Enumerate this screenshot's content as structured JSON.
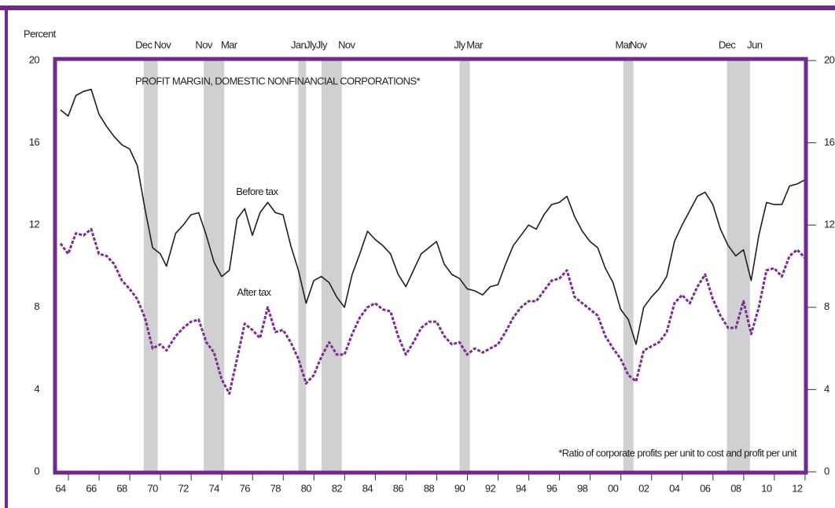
{
  "chart_data": {
    "type": "line",
    "y_label": "Percent",
    "title": "PROFIT MARGIN, DOMESTIC NONFINANCIAL CORPORATIONS*",
    "footnote": "*Ratio of corporate profits per unit to cost and profit per unit",
    "annotations": [
      {
        "text": "Before tax",
        "x": 1977.3,
        "y": 13.6
      },
      {
        "text": "After tax",
        "x": 1977.1,
        "y": 8.7
      }
    ],
    "xlim": [
      1964.04,
      2013.17
    ],
    "ylim": [
      0,
      20
    ],
    "yticks": [
      0,
      4,
      8,
      12,
      16,
      20
    ],
    "xticks": [
      {
        "value": 1964.5,
        "label": "64"
      },
      {
        "value": 1966.5,
        "label": "66"
      },
      {
        "value": 1968.5,
        "label": "68"
      },
      {
        "value": 1970.5,
        "label": "70"
      },
      {
        "value": 1972.5,
        "label": "72"
      },
      {
        "value": 1974.5,
        "label": "74"
      },
      {
        "value": 1976.5,
        "label": "76"
      },
      {
        "value": 1978.5,
        "label": "78"
      },
      {
        "value": 1980.5,
        "label": "80"
      },
      {
        "value": 1982.5,
        "label": "82"
      },
      {
        "value": 1984.5,
        "label": "84"
      },
      {
        "value": 1986.5,
        "label": "86"
      },
      {
        "value": 1988.5,
        "label": "88"
      },
      {
        "value": 1990.5,
        "label": "90"
      },
      {
        "value": 1992.5,
        "label": "92"
      },
      {
        "value": 1994.5,
        "label": "94"
      },
      {
        "value": 1996.5,
        "label": "96"
      },
      {
        "value": 1998.5,
        "label": "98"
      },
      {
        "value": 2000.5,
        "label": "00"
      },
      {
        "value": 2002.5,
        "label": "02"
      },
      {
        "value": 2004.5,
        "label": "04"
      },
      {
        "value": 2006.5,
        "label": "06"
      },
      {
        "value": 2008.5,
        "label": "08"
      },
      {
        "value": 2010.5,
        "label": "10"
      },
      {
        "value": 2012.5,
        "label": "12"
      }
    ],
    "recessions": [
      {
        "start": 1969.92,
        "end": 1970.83,
        "start_label": "Dec",
        "end_label": "Nov"
      },
      {
        "start": 1973.83,
        "end": 1975.17,
        "start_label": "Nov",
        "end_label": "Mar"
      },
      {
        "start": 1980.0,
        "end": 1980.5,
        "start_label": "Jan",
        "end_label": "Jly"
      },
      {
        "start": 1981.5,
        "end": 1982.83,
        "start_label": "Jly",
        "end_label": "Nov"
      },
      {
        "start": 1990.5,
        "end": 1991.17,
        "start_label": "Jly",
        "end_label": "Mar"
      },
      {
        "start": 2001.17,
        "end": 2001.83,
        "start_label": "Mar",
        "end_label": "Nov"
      },
      {
        "start": 2007.92,
        "end": 2009.42,
        "start_label": "Dec",
        "end_label": "Jun"
      }
    ],
    "recession_color": "#d0d0d2",
    "frame_color": "#6f2a8c",
    "x": [
      1964.5,
      1965.0,
      1965.5,
      1966.0,
      1966.5,
      1967.0,
      1967.5,
      1968.0,
      1968.5,
      1969.0,
      1969.5,
      1970.0,
      1970.5,
      1971.0,
      1971.4,
      1972.0,
      1972.5,
      1973.0,
      1973.5,
      1974.0,
      1974.5,
      1975.0,
      1975.5,
      1976.0,
      1976.5,
      1977.0,
      1977.5,
      1978.0,
      1978.5,
      1979.0,
      1979.5,
      1980.0,
      1980.5,
      1981.0,
      1981.5,
      1982.0,
      1982.5,
      1983.0,
      1983.5,
      1984.0,
      1984.5,
      1985.0,
      1985.5,
      1986.0,
      1986.5,
      1987.0,
      1987.5,
      1988.0,
      1988.5,
      1989.0,
      1989.5,
      1990.0,
      1990.5,
      1991.0,
      1991.5,
      1992.0,
      1992.5,
      1993.0,
      1993.5,
      1994.0,
      1994.5,
      1995.0,
      1995.5,
      1996.0,
      1996.5,
      1997.0,
      1997.5,
      1998.0,
      1998.5,
      1999.0,
      1999.5,
      2000.0,
      2000.5,
      2001.0,
      2001.5,
      2002.0,
      2002.5,
      2003.0,
      2003.5,
      2004.0,
      2004.5,
      2005.0,
      2005.5,
      2006.0,
      2006.5,
      2007.0,
      2007.5,
      2008.0,
      2008.5,
      2009.0,
      2009.5,
      2010.0,
      2010.5,
      2011.0,
      2011.5,
      2012.0,
      2012.5,
      2013.0
    ],
    "series": [
      {
        "name": "Before tax",
        "color": "#1e1e1e",
        "dashed": false,
        "values": [
          17.6,
          17.3,
          18.3,
          18.5,
          18.6,
          17.4,
          16.8,
          16.3,
          15.9,
          15.7,
          14.9,
          12.8,
          10.9,
          10.6,
          10.0,
          11.6,
          12.0,
          12.5,
          12.6,
          11.5,
          10.2,
          9.5,
          9.8,
          12.3,
          12.8,
          11.5,
          12.6,
          13.1,
          12.6,
          12.5,
          11.0,
          9.8,
          8.2,
          9.3,
          9.5,
          9.2,
          8.5,
          8.0,
          9.6,
          10.6,
          11.7,
          11.3,
          11.0,
          10.6,
          9.6,
          9.0,
          9.8,
          10.6,
          10.9,
          11.2,
          10.1,
          9.6,
          9.4,
          8.9,
          8.8,
          8.6,
          9.0,
          9.1,
          10.1,
          11.0,
          11.5,
          12.0,
          11.8,
          12.5,
          13.0,
          13.1,
          13.4,
          12.4,
          11.7,
          11.2,
          10.9,
          9.9,
          9.2,
          7.9,
          7.4,
          6.2,
          8.0,
          8.5,
          8.9,
          9.5,
          11.2,
          12.0,
          12.7,
          13.4,
          13.6,
          13.0,
          11.8,
          11.0,
          10.5,
          10.8,
          9.3,
          11.5,
          13.1,
          13.0,
          13.0,
          13.9,
          14.0,
          14.2
        ]
      },
      {
        "name": "After tax",
        "color": "#7b2d93",
        "dashed": true,
        "values": [
          11.1,
          10.6,
          11.6,
          11.5,
          11.8,
          10.6,
          10.5,
          10.1,
          9.3,
          8.9,
          8.4,
          7.5,
          6.0,
          6.2,
          5.9,
          6.6,
          7.0,
          7.3,
          7.4,
          6.3,
          5.8,
          4.5,
          3.8,
          5.5,
          7.2,
          6.9,
          6.5,
          8.0,
          6.8,
          6.9,
          6.3,
          5.5,
          4.3,
          4.7,
          5.6,
          6.3,
          5.7,
          5.7,
          6.7,
          7.5,
          8.0,
          8.2,
          7.9,
          7.8,
          6.6,
          5.7,
          6.3,
          7.0,
          7.3,
          7.3,
          6.6,
          6.2,
          6.3,
          5.7,
          6.0,
          5.8,
          6.0,
          6.2,
          6.8,
          7.5,
          8.0,
          8.3,
          8.3,
          8.8,
          9.3,
          9.4,
          9.8,
          8.5,
          8.2,
          7.9,
          7.6,
          6.6,
          6.0,
          5.5,
          4.7,
          4.4,
          5.9,
          6.1,
          6.3,
          6.8,
          8.2,
          8.6,
          8.2,
          9.0,
          9.6,
          8.4,
          7.6,
          7.0,
          7.0,
          8.3,
          6.7,
          8.0,
          9.8,
          9.9,
          9.5,
          10.5,
          10.8,
          10.4
        ]
      }
    ]
  }
}
